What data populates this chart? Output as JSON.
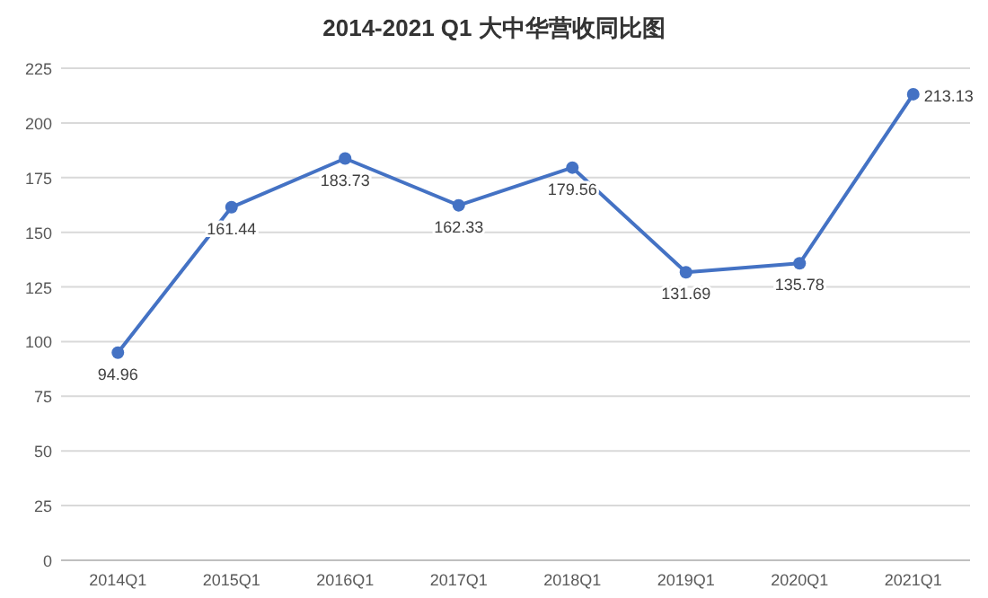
{
  "chart_data": {
    "type": "line",
    "title": "2014-2021 Q1 大中华营收同比图",
    "categories": [
      "2014Q1",
      "2015Q1",
      "2016Q1",
      "2017Q1",
      "2018Q1",
      "2019Q1",
      "2020Q1",
      "2021Q1"
    ],
    "series": [
      {
        "color": "#4472c4",
        "values": [
          94.96,
          161.44,
          183.73,
          162.33,
          179.56,
          131.69,
          135.78,
          213.13
        ]
      }
    ],
    "ylim": [
      0,
      225
    ],
    "yticks": [
      0,
      25,
      50,
      75,
      100,
      125,
      150,
      175,
      200,
      225
    ],
    "grid": "y",
    "marker": "circle",
    "data_labels": true
  }
}
